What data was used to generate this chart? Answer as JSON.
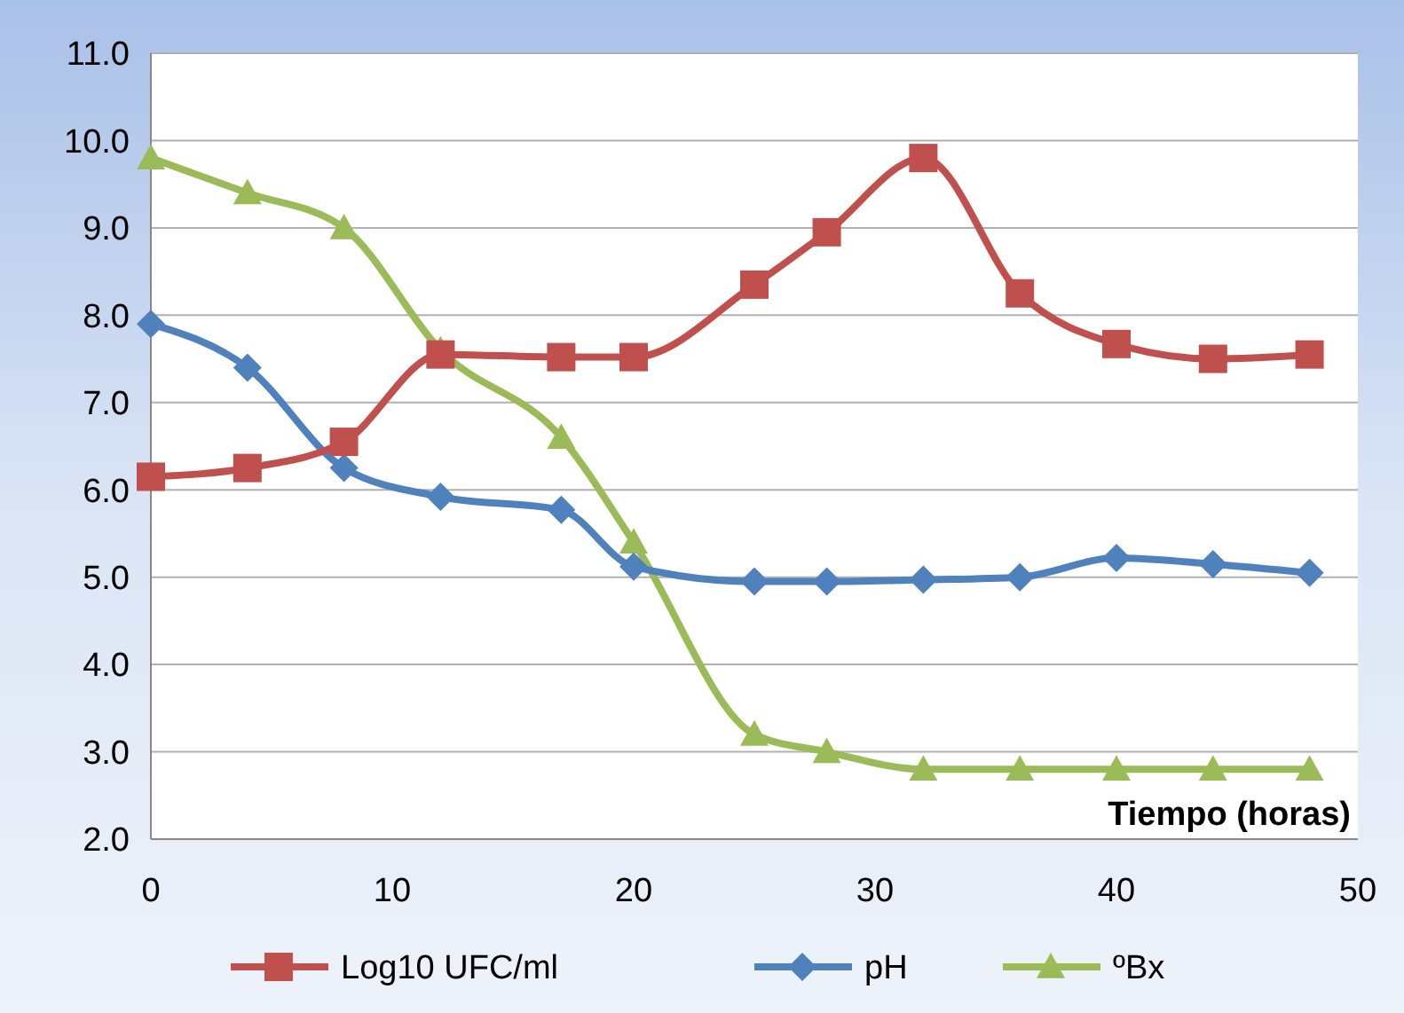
{
  "chart_data": {
    "type": "line",
    "xlabel": "Tiempo (horas)",
    "x": [
      0,
      4,
      8,
      12,
      17,
      20,
      25,
      28,
      32,
      36,
      40,
      44,
      48
    ],
    "xlim": [
      0,
      50
    ],
    "xticks": [
      0,
      10,
      20,
      30,
      40,
      50
    ],
    "ylim": [
      2,
      11
    ],
    "yticks": [
      {
        "value": 2,
        "label": "2.0"
      },
      {
        "value": 3,
        "label": "3.0"
      },
      {
        "value": 4,
        "label": "4.0"
      },
      {
        "value": 5,
        "label": "5.0"
      },
      {
        "value": 6,
        "label": "6.0"
      },
      {
        "value": 7,
        "label": "7.0"
      },
      {
        "value": 8,
        "label": "8.0"
      },
      {
        "value": 9,
        "label": "9.0"
      },
      {
        "value": 10,
        "label": "10.0"
      },
      {
        "value": 11,
        "label": "11.0"
      }
    ],
    "grid": "y",
    "legend": "bottom",
    "series": [
      {
        "name": "Log10 UFC/ml",
        "color": "#c0504d",
        "marker": "square",
        "values": [
          6.15,
          6.25,
          6.55,
          7.55,
          7.52,
          7.52,
          8.35,
          8.95,
          9.8,
          8.25,
          7.67,
          7.5,
          7.55
        ]
      },
      {
        "name": "pH",
        "color": "#4f81bd",
        "marker": "diamond",
        "values": [
          7.9,
          7.4,
          6.25,
          5.92,
          5.77,
          5.12,
          4.95,
          4.95,
          4.97,
          5.0,
          5.22,
          5.15,
          5.05
        ]
      },
      {
        "name": "ºBx",
        "color": "#9bbb59",
        "marker": "triangle",
        "values": [
          9.8,
          9.4,
          9.0,
          7.6,
          6.6,
          5.4,
          3.2,
          3.0,
          2.8,
          2.8,
          2.8,
          2.8,
          2.8
        ]
      }
    ]
  }
}
